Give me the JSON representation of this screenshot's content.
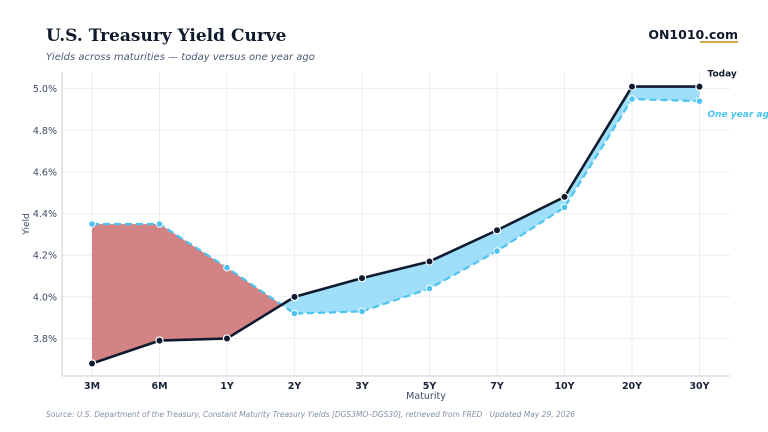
{
  "header": {
    "title": "U.S. Treasury Yield Curve",
    "subtitle": "Yields across maturities — today versus one year ago",
    "brand": "ON1010.com"
  },
  "footer": {
    "source": "Source: U.S. Department of the Treasury, Constant Maturity Treasury Yields [DGS3MO–DGS30], retrieved from FRED · Updated May 29, 2026"
  },
  "colors": {
    "today": "#101a2e",
    "one_year_ago": "#4cc3f0",
    "inverted_fill": "#c45a5a",
    "normal_fill": "#7fd4f7",
    "grid": "#eceef2",
    "brand_accent": "#d4a64a"
  },
  "chart_data": {
    "type": "line",
    "title": "U.S. Treasury Yield Curve",
    "xlabel": "Maturity",
    "ylabel": "Yield",
    "categories": [
      "3M",
      "6M",
      "1Y",
      "2Y",
      "3Y",
      "5Y",
      "7Y",
      "10Y",
      "20Y",
      "30Y"
    ],
    "series": [
      {
        "name": "Today",
        "values": [
          3.68,
          3.79,
          3.8,
          4.0,
          4.09,
          4.17,
          4.32,
          4.48,
          5.01,
          5.01
        ]
      },
      {
        "name": "One year ag",
        "values": [
          4.35,
          4.35,
          4.14,
          3.92,
          3.93,
          4.04,
          4.22,
          4.43,
          4.95,
          4.94
        ]
      }
    ],
    "ylim": [
      3.62,
      5.08
    ],
    "yticks": [
      3.8,
      4.0,
      4.2,
      4.4,
      4.6,
      4.8,
      5.0
    ],
    "ytick_labels": [
      "3.8%",
      "4.0%",
      "4.2%",
      "4.4%",
      "4.6%",
      "4.8%",
      "5.0%"
    ],
    "grid": true,
    "legend": "end-of-line labels (right)"
  }
}
